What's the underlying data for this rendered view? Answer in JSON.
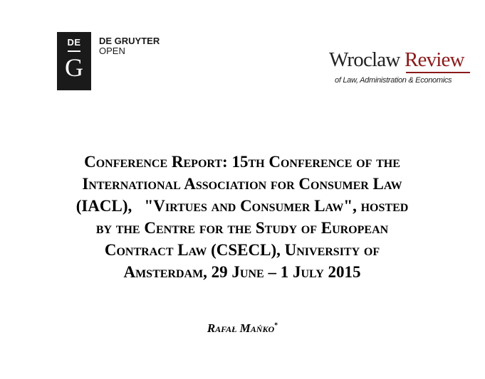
{
  "publisher_logo": {
    "box_top": "DE",
    "box_letter": "G",
    "name": "DE GRUYTER",
    "sub": "OPEN"
  },
  "journal_logo": {
    "word1": "Wroclaw",
    "word2": "Review",
    "subtitle": "of Law, Administration & Economics",
    "accent": "#8b1a1a"
  },
  "title_lines": [
    "Conference Report: 15th Conference of the",
    "International Association for Consumer Law",
    "(IACL),   \"Virtues and Consumer Law\", hosted",
    "by the Centre for the Study of European",
    "Contract Law (CSECL), University of",
    "Amsterdam, 29 June – 1 July 2015"
  ],
  "author": {
    "name": "Rafał Mańko",
    "footnote_mark": "*"
  }
}
